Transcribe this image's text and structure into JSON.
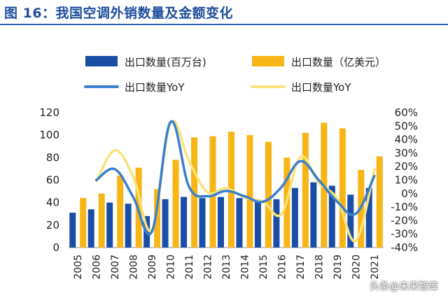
{
  "title": "图 16：我国空调外销数量及金额变化",
  "watermark": "头条@未来智库",
  "chart_data": {
    "type": "bar",
    "categories": [
      "2005",
      "2006",
      "2007",
      "2008",
      "2009",
      "2010",
      "2011",
      "2012",
      "2013",
      "2014",
      "2015",
      "2016",
      "2017",
      "2018",
      "2019",
      "2020",
      "2021"
    ],
    "series": [
      {
        "name": "出口数量(百万台)",
        "kind": "bar",
        "axis": "left",
        "color": "#1a4ea6",
        "values": [
          31,
          34,
          40,
          39,
          28,
          43,
          45,
          44,
          45,
          44,
          41,
          43,
          53,
          58,
          55,
          47,
          53
        ]
      },
      {
        "name": "出口数量（亿美元）",
        "kind": "bar",
        "axis": "left",
        "color": "#f7b516",
        "values": [
          44,
          48,
          64,
          71,
          52,
          78,
          98,
          99,
          103,
          100,
          94,
          80,
          102,
          111,
          106,
          69,
          81
        ]
      },
      {
        "name": "出口数量YoY",
        "kind": "line",
        "axis": "right",
        "color": "#3a7fcf",
        "values": [
          null,
          10,
          18,
          -3,
          -28,
          53,
          5,
          -2,
          2,
          -2,
          -6,
          5,
          24,
          10,
          -6,
          -15,
          13
        ]
      },
      {
        "name": "出口数量YoY",
        "kind": "line",
        "axis": "right",
        "color": "#f9e37a",
        "values": [
          null,
          9,
          32,
          12,
          -27,
          52,
          24,
          1,
          4,
          -3,
          -6,
          -15,
          27,
          8,
          -4,
          -35,
          18
        ]
      }
    ],
    "left_axis": {
      "ylim": [
        0,
        120
      ],
      "ticks": [
        "0",
        "20",
        "40",
        "60",
        "80",
        "100",
        "120"
      ]
    },
    "right_axis": {
      "ylim": [
        -40,
        60
      ],
      "ticks": [
        "-40%",
        "-30%",
        "-20%",
        "-10%",
        "0%",
        "10%",
        "20%",
        "30%",
        "40%",
        "50%",
        "60%"
      ]
    },
    "legend_position": "top"
  }
}
